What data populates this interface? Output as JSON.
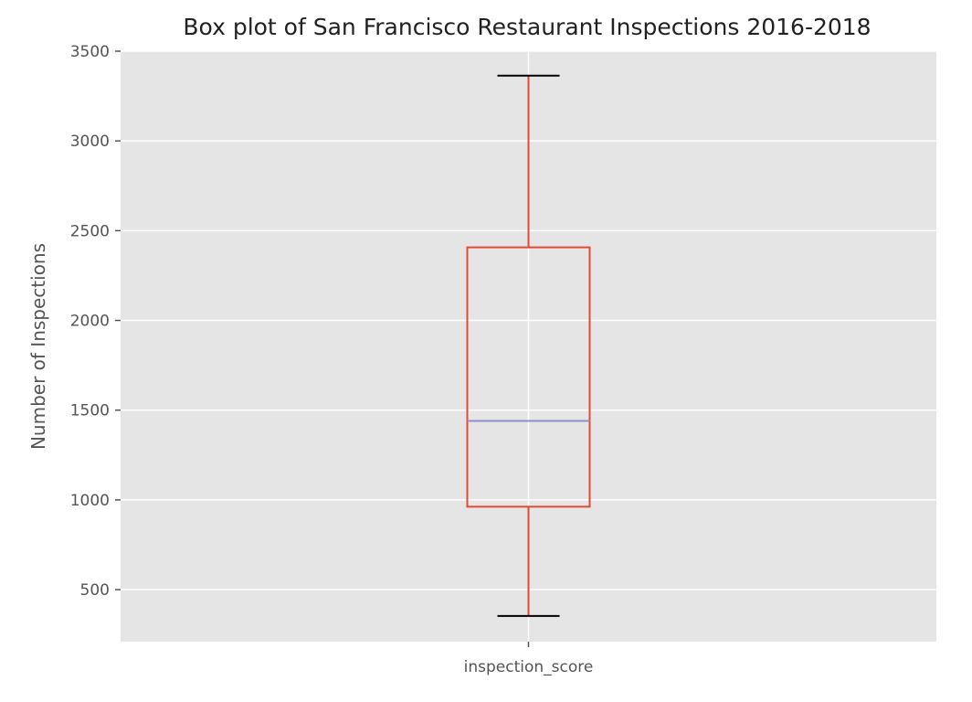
{
  "chart_data": {
    "type": "box",
    "title": "Box plot of San Francisco Restaurant Inspections 2016-2018",
    "xlabel": "",
    "ylabel": "Number of Inspections",
    "categories": [
      "inspection_score"
    ],
    "ylim": [
      210,
      3500
    ],
    "yticks": [
      500,
      1000,
      1500,
      2000,
      2500,
      3000,
      3500
    ],
    "grid": true,
    "boxes": [
      {
        "name": "inspection_score",
        "whisker_low": 353,
        "q1": 962,
        "median": 1440,
        "q3": 2407,
        "whisker_high": 3364
      }
    ],
    "colors": {
      "plot_background": "#e5e5e5",
      "grid": "#ffffff",
      "box": "#e24a33",
      "median": "#8e8fcb",
      "caps": "#000000"
    }
  }
}
